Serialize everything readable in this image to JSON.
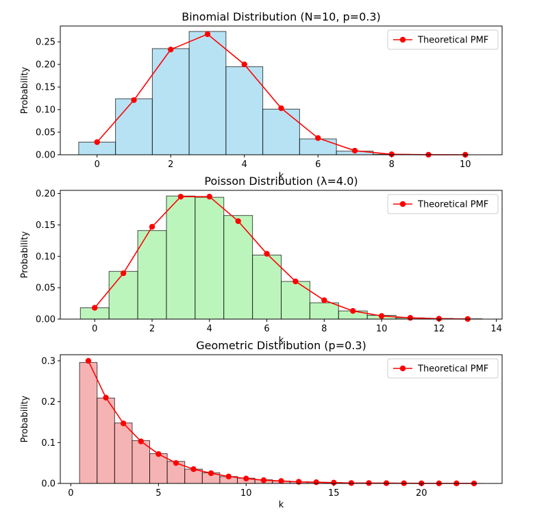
{
  "chart_data": [
    {
      "type": "bar",
      "title": "Binomial Distribution (N=10, p=0.3)",
      "xlabel": "k",
      "ylabel": "Probability",
      "xlim": [
        -1,
        11
      ],
      "ylim": [
        0,
        0.285
      ],
      "xticks": [
        0,
        2,
        4,
        6,
        8,
        10
      ],
      "yticks": [
        0.0,
        0.05,
        0.1,
        0.15,
        0.2,
        0.25
      ],
      "ytick_decimals": 2,
      "bar_color": "#87ceeb",
      "legend": {
        "label": "Theoretical PMF",
        "position": "top-right"
      },
      "histogram": {
        "bin_edges": [
          -0.5,
          0.5,
          1.5,
          2.5,
          3.5,
          4.5,
          5.5,
          6.5,
          7.5,
          8.5,
          9.5,
          10.5
        ],
        "values": [
          0.028,
          0.124,
          0.235,
          0.273,
          0.195,
          0.101,
          0.035,
          0.008,
          0.001,
          0.0,
          0.0
        ]
      },
      "pmf": {
        "x": [
          0,
          1,
          2,
          3,
          4,
          5,
          6,
          7,
          8,
          9,
          10
        ],
        "y": [
          0.028,
          0.121,
          0.233,
          0.267,
          0.2,
          0.103,
          0.037,
          0.009,
          0.001,
          0.0001,
          0.0
        ]
      }
    },
    {
      "type": "bar",
      "title": "Poisson Distribution (λ=4.0)",
      "xlabel": "k",
      "ylabel": "Probability",
      "xlim": [
        -1.2,
        14.2
      ],
      "ylim": [
        0,
        0.205
      ],
      "xticks": [
        0,
        2,
        4,
        6,
        8,
        10,
        12,
        14
      ],
      "yticks": [
        0.0,
        0.05,
        0.1,
        0.15,
        0.2
      ],
      "ytick_decimals": 2,
      "bar_color": "#90ee90",
      "legend": {
        "label": "Theoretical PMF",
        "position": "top-right"
      },
      "histogram": {
        "bin_edges": [
          -0.5,
          0.5,
          1.5,
          2.5,
          3.5,
          4.5,
          5.5,
          6.5,
          7.5,
          8.5,
          9.5,
          10.5,
          11.5,
          12.5,
          13.5
        ],
        "values": [
          0.018,
          0.076,
          0.141,
          0.196,
          0.194,
          0.165,
          0.102,
          0.06,
          0.026,
          0.013,
          0.006,
          0.002,
          0.001,
          0.0005
        ]
      },
      "pmf": {
        "x": [
          0,
          1,
          2,
          3,
          4,
          5,
          6,
          7,
          8,
          9,
          10,
          11,
          12,
          13
        ],
        "y": [
          0.018,
          0.073,
          0.147,
          0.195,
          0.195,
          0.156,
          0.104,
          0.06,
          0.03,
          0.013,
          0.005,
          0.002,
          0.0006,
          0.0002
        ]
      }
    },
    {
      "type": "bar",
      "title": "Geometric Distribution (p=0.3)",
      "xlabel": "k",
      "ylabel": "Probability",
      "xlim": [
        -0.6,
        24.6
      ],
      "ylim": [
        0,
        0.315
      ],
      "xticks": [
        0,
        5,
        10,
        15,
        20
      ],
      "yticks": [
        0.0,
        0.1,
        0.2,
        0.3
      ],
      "ytick_decimals": 1,
      "bar_color": "#f08080",
      "legend": {
        "label": "Theoretical PMF",
        "position": "top-right"
      },
      "histogram": {
        "bin_edges": [
          0.5,
          1.5,
          2.5,
          3.5,
          4.5,
          5.5,
          6.5,
          7.5,
          8.5,
          9.5,
          10.5,
          11.5,
          12.5,
          13.5,
          14.5,
          15.5,
          16.5,
          17.5,
          18.5,
          19.5,
          20.5,
          21.5,
          22.5,
          23.5
        ],
        "values": [
          0.296,
          0.209,
          0.148,
          0.105,
          0.073,
          0.054,
          0.035,
          0.026,
          0.017,
          0.013,
          0.009,
          0.006,
          0.004,
          0.003,
          0.002,
          0.001,
          0.001,
          0.001,
          0.0005,
          0.0005,
          0.0003,
          0.0002,
          0.0001
        ]
      },
      "pmf": {
        "x": [
          1,
          2,
          3,
          4,
          5,
          6,
          7,
          8,
          9,
          10,
          11,
          12,
          13,
          14,
          15,
          16,
          17,
          18,
          19,
          20,
          21,
          22,
          23
        ],
        "y": [
          0.3,
          0.21,
          0.147,
          0.103,
          0.072,
          0.05,
          0.035,
          0.025,
          0.017,
          0.012,
          0.008,
          0.006,
          0.004,
          0.003,
          0.002,
          0.001,
          0.001,
          0.0007,
          0.0005,
          0.0003,
          0.0002,
          0.0002,
          0.0001
        ]
      }
    }
  ]
}
